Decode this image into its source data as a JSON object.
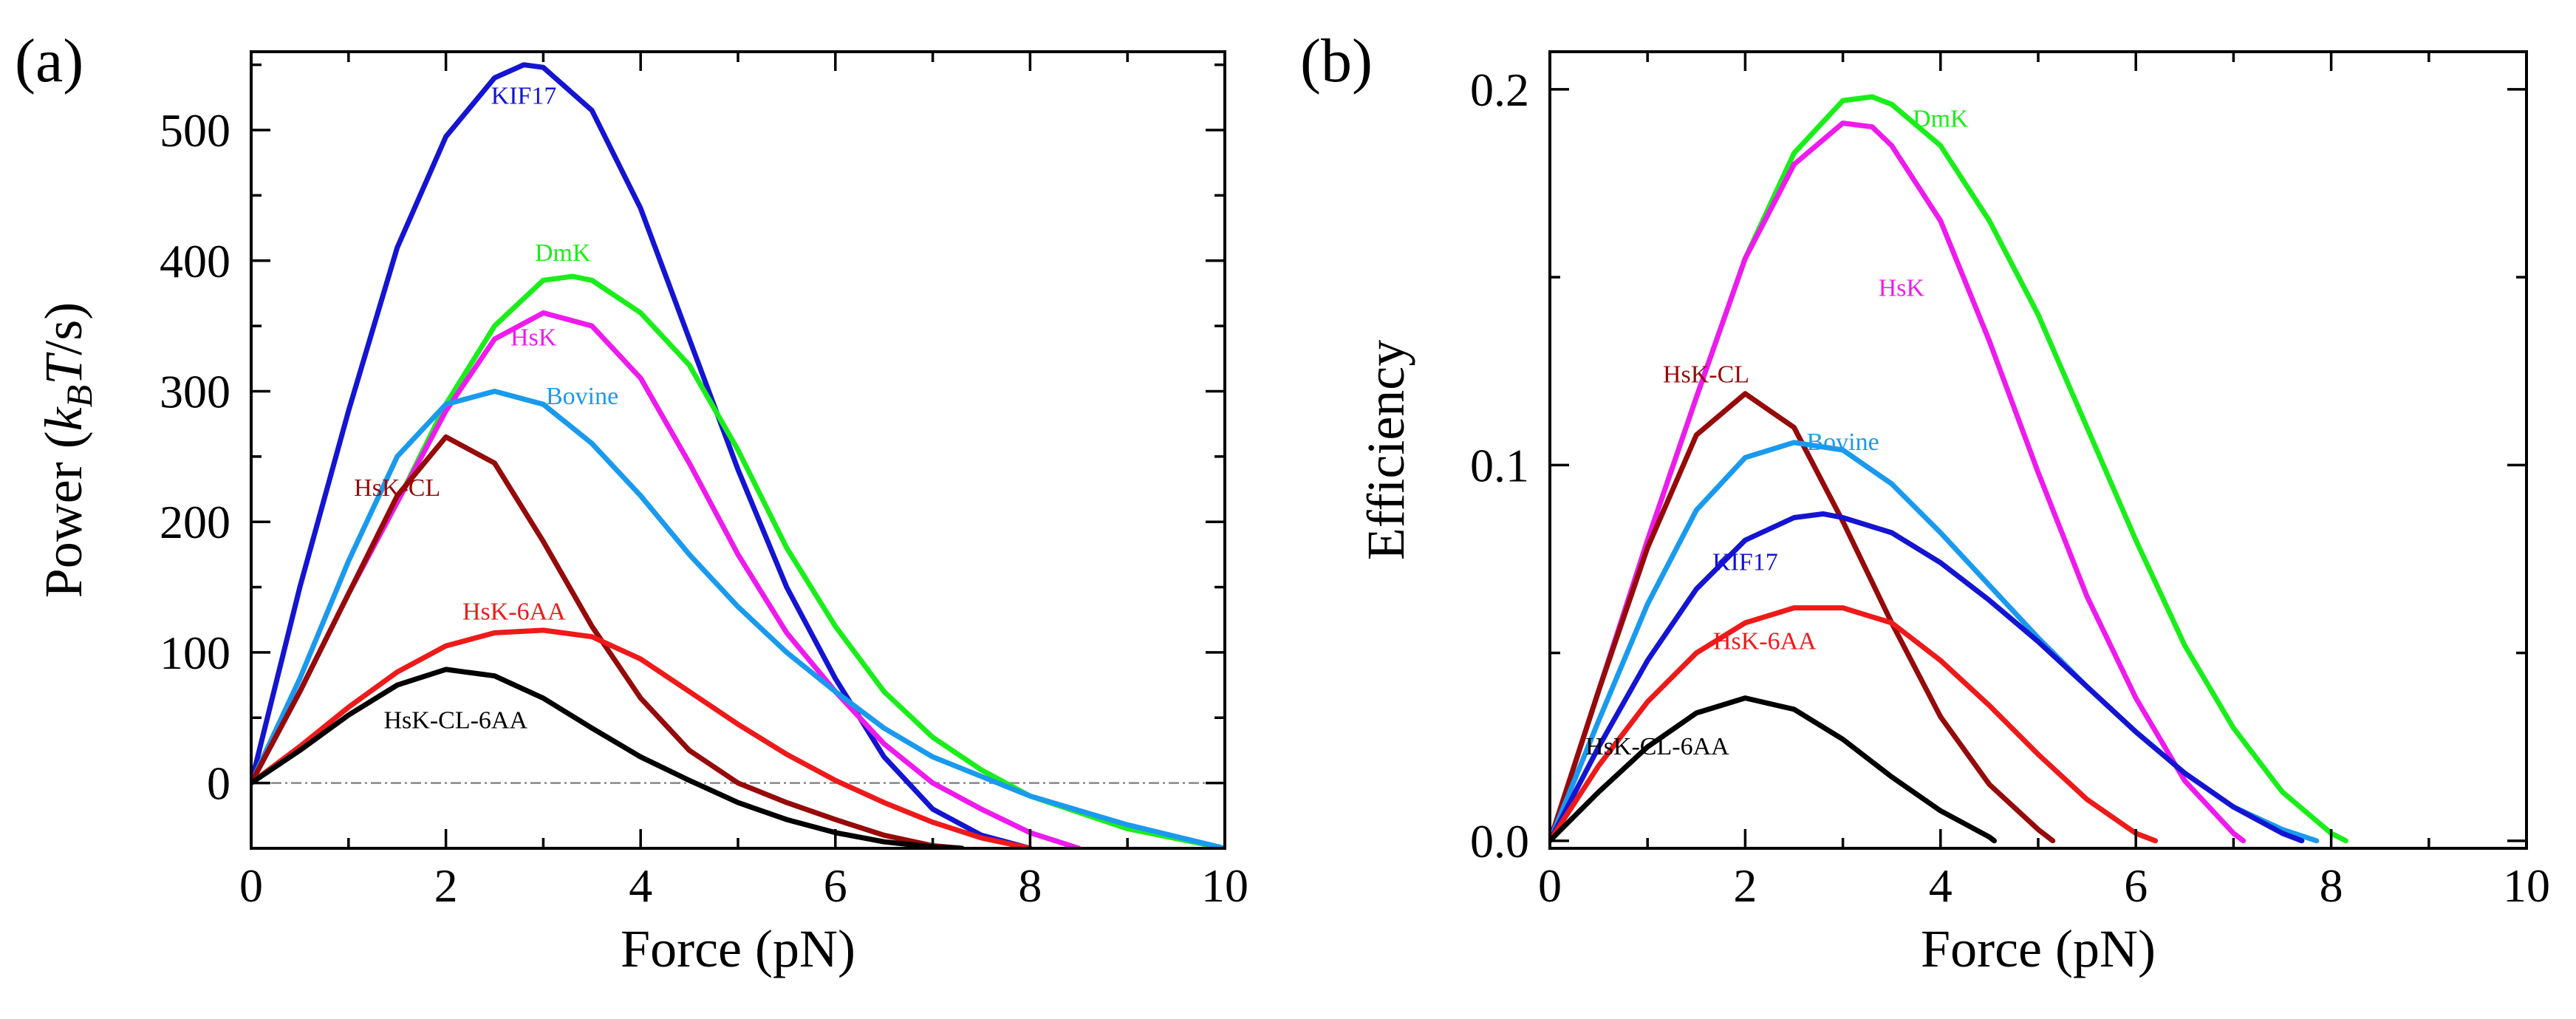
{
  "chart_data": [
    {
      "type": "line",
      "panel_label": "(a)",
      "xlabel": "Force (pN)",
      "ylabel": {
        "prefix": "Power (",
        "k": "k",
        "sub": "B",
        "t": "T",
        "suffix": "/s)"
      },
      "xlim": [
        0,
        10
      ],
      "ylim": [
        -50,
        560
      ],
      "xticks": [
        0,
        2,
        4,
        6,
        8,
        10
      ],
      "yticks": [
        0,
        100,
        200,
        300,
        400,
        500
      ],
      "zero_line": true,
      "series": [
        {
          "name": "KIF17",
          "color": "#1414d2",
          "points": [
            [
              0,
              0
            ],
            [
              0.5,
              150
            ],
            [
              1,
              285
            ],
            [
              1.5,
              410
            ],
            [
              2,
              495
            ],
            [
              2.5,
              540
            ],
            [
              2.8,
              550
            ],
            [
              3,
              548
            ],
            [
              3.5,
              515
            ],
            [
              4,
              440
            ],
            [
              4.5,
              340
            ],
            [
              5,
              240
            ],
            [
              5.5,
              150
            ],
            [
              6,
              80
            ],
            [
              6.5,
              20
            ],
            [
              7,
              -20
            ],
            [
              7.5,
              -40
            ],
            [
              8,
              -50
            ]
          ]
        },
        {
          "name": "DmK",
          "color": "#1aee1a",
          "points": [
            [
              0,
              0
            ],
            [
              0.5,
              70
            ],
            [
              1,
              145
            ],
            [
              1.5,
              215
            ],
            [
              2,
              290
            ],
            [
              2.5,
              350
            ],
            [
              3,
              385
            ],
            [
              3.3,
              388
            ],
            [
              3.5,
              385
            ],
            [
              4,
              360
            ],
            [
              4.5,
              320
            ],
            [
              5,
              255
            ],
            [
              5.5,
              180
            ],
            [
              6,
              120
            ],
            [
              6.5,
              70
            ],
            [
              7,
              35
            ],
            [
              7.5,
              10
            ],
            [
              8,
              -10
            ],
            [
              9,
              -35
            ],
            [
              10,
              -50
            ]
          ]
        },
        {
          "name": "HsK",
          "color": "#ee1aee",
          "points": [
            [
              0,
              0
            ],
            [
              0.5,
              70
            ],
            [
              1,
              145
            ],
            [
              1.5,
              215
            ],
            [
              2,
              285
            ],
            [
              2.5,
              340
            ],
            [
              3,
              360
            ],
            [
              3.5,
              350
            ],
            [
              4,
              310
            ],
            [
              4.5,
              245
            ],
            [
              5,
              175
            ],
            [
              5.5,
              115
            ],
            [
              6,
              70
            ],
            [
              6.5,
              30
            ],
            [
              7,
              0
            ],
            [
              7.5,
              -20
            ],
            [
              8,
              -38
            ],
            [
              8.5,
              -50
            ]
          ]
        },
        {
          "name": "Bovine",
          "color": "#1a9aee",
          "points": [
            [
              0,
              0
            ],
            [
              0.5,
              80
            ],
            [
              1,
              170
            ],
            [
              1.5,
              250
            ],
            [
              2,
              290
            ],
            [
              2.5,
              300
            ],
            [
              3,
              290
            ],
            [
              3.5,
              260
            ],
            [
              4,
              220
            ],
            [
              4.5,
              175
            ],
            [
              5,
              135
            ],
            [
              5.5,
              100
            ],
            [
              6,
              70
            ],
            [
              6.5,
              42
            ],
            [
              7,
              20
            ],
            [
              7.5,
              5
            ],
            [
              8,
              -10
            ],
            [
              9,
              -32
            ],
            [
              10,
              -50
            ]
          ]
        },
        {
          "name": "HsK-CL",
          "color": "#960a0a",
          "points": [
            [
              0,
              0
            ],
            [
              0.5,
              70
            ],
            [
              1,
              145
            ],
            [
              1.5,
              220
            ],
            [
              2,
              265
            ],
            [
              2.5,
              245
            ],
            [
              3,
              185
            ],
            [
              3.5,
              120
            ],
            [
              4,
              65
            ],
            [
              4.5,
              25
            ],
            [
              5,
              0
            ],
            [
              5.5,
              -15
            ],
            [
              6,
              -28
            ],
            [
              6.5,
              -40
            ],
            [
              7,
              -48
            ],
            [
              7.3,
              -50
            ]
          ]
        },
        {
          "name": "HsK-6AA",
          "color": "#ee1a1a",
          "points": [
            [
              0,
              0
            ],
            [
              0.5,
              28
            ],
            [
              1,
              58
            ],
            [
              1.5,
              85
            ],
            [
              2,
              105
            ],
            [
              2.5,
              115
            ],
            [
              3,
              117
            ],
            [
              3.5,
              112
            ],
            [
              4,
              95
            ],
            [
              4.5,
              70
            ],
            [
              5,
              45
            ],
            [
              5.5,
              22
            ],
            [
              6,
              2
            ],
            [
              6.5,
              -15
            ],
            [
              7,
              -30
            ],
            [
              7.5,
              -42
            ],
            [
              8,
              -50
            ]
          ]
        },
        {
          "name": "HsK-CL-6AA",
          "color": "#000000",
          "points": [
            [
              0,
              0
            ],
            [
              0.5,
              25
            ],
            [
              1,
              52
            ],
            [
              1.5,
              75
            ],
            [
              2,
              87
            ],
            [
              2.5,
              82
            ],
            [
              3,
              65
            ],
            [
              3.5,
              42
            ],
            [
              4,
              20
            ],
            [
              4.5,
              2
            ],
            [
              5,
              -15
            ],
            [
              5.5,
              -28
            ],
            [
              6,
              -38
            ],
            [
              6.5,
              -45
            ],
            [
              7,
              -49
            ],
            [
              7.3,
              -50
            ]
          ]
        }
      ],
      "annotations": [
        {
          "text": "KIF17",
          "series": "KIF17",
          "x": 2.8,
          "y": 520
        },
        {
          "text": "DmK",
          "series": "DmK",
          "x": 3.2,
          "y": 400
        },
        {
          "text": "HsK",
          "series": "HsK",
          "x": 2.9,
          "y": 335
        },
        {
          "text": "Bovine",
          "series": "Bovine",
          "x": 3.4,
          "y": 290
        },
        {
          "text": "HsK-CL",
          "series": "HsK-CL",
          "x": 1.5,
          "y": 220
        },
        {
          "text": "HsK-6AA",
          "series": "HsK-6AA",
          "x": 2.7,
          "y": 125
        },
        {
          "text": "HsK-CL-6AA",
          "series": "HsK-CL-6AA",
          "x": 2.1,
          "y": 42
        }
      ]
    },
    {
      "type": "line",
      "panel_label": "(b)",
      "xlabel": "Force (pN)",
      "ylabel": "Efficiency",
      "xlim": [
        0,
        10
      ],
      "ylim": [
        -0.002,
        0.21
      ],
      "xticks": [
        0,
        2,
        4,
        6,
        8,
        10
      ],
      "yticks": [
        0.0,
        0.1,
        0.2
      ],
      "ytick_labels": [
        "0.0",
        "0.1",
        "0.2"
      ],
      "zero_line": false,
      "series": [
        {
          "name": "DmK",
          "color": "#1aee1a",
          "points": [
            [
              0,
              0
            ],
            [
              0.5,
              0.04
            ],
            [
              1,
              0.08
            ],
            [
              1.5,
              0.118
            ],
            [
              2,
              0.155
            ],
            [
              2.5,
              0.183
            ],
            [
              3,
              0.197
            ],
            [
              3.3,
              0.198
            ],
            [
              3.5,
              0.196
            ],
            [
              4,
              0.185
            ],
            [
              4.5,
              0.165
            ],
            [
              5,
              0.14
            ],
            [
              5.5,
              0.11
            ],
            [
              6,
              0.08
            ],
            [
              6.5,
              0.052
            ],
            [
              7,
              0.03
            ],
            [
              7.5,
              0.013
            ],
            [
              8,
              0.002
            ],
            [
              8.15,
              0
            ]
          ]
        },
        {
          "name": "HsK",
          "color": "#ee1aee",
          "points": [
            [
              0,
              0
            ],
            [
              0.5,
              0.04
            ],
            [
              1,
              0.08
            ],
            [
              1.5,
              0.118
            ],
            [
              2,
              0.155
            ],
            [
              2.5,
              0.18
            ],
            [
              3,
              0.191
            ],
            [
              3.3,
              0.19
            ],
            [
              3.5,
              0.185
            ],
            [
              4,
              0.165
            ],
            [
              4.5,
              0.133
            ],
            [
              5,
              0.098
            ],
            [
              5.5,
              0.065
            ],
            [
              6,
              0.038
            ],
            [
              6.5,
              0.016
            ],
            [
              7,
              0.002
            ],
            [
              7.1,
              0
            ]
          ]
        },
        {
          "name": "HsK-CL",
          "color": "#960a0a",
          "points": [
            [
              0,
              0
            ],
            [
              0.5,
              0.04
            ],
            [
              1,
              0.078
            ],
            [
              1.5,
              0.108
            ],
            [
              2,
              0.119
            ],
            [
              2.5,
              0.11
            ],
            [
              3,
              0.085
            ],
            [
              3.5,
              0.058
            ],
            [
              4,
              0.033
            ],
            [
              4.5,
              0.015
            ],
            [
              5,
              0.003
            ],
            [
              5.15,
              0
            ]
          ]
        },
        {
          "name": "Bovine",
          "color": "#1a9aee",
          "points": [
            [
              0,
              0
            ],
            [
              0.5,
              0.032
            ],
            [
              1,
              0.063
            ],
            [
              1.5,
              0.088
            ],
            [
              2,
              0.102
            ],
            [
              2.5,
              0.106
            ],
            [
              3,
              0.104
            ],
            [
              3.5,
              0.095
            ],
            [
              4,
              0.082
            ],
            [
              4.5,
              0.068
            ],
            [
              5,
              0.054
            ],
            [
              5.5,
              0.041
            ],
            [
              6,
              0.029
            ],
            [
              6.5,
              0.018
            ],
            [
              7,
              0.009
            ],
            [
              7.5,
              0.003
            ],
            [
              7.85,
              0
            ]
          ]
        },
        {
          "name": "KIF17",
          "color": "#1414d2",
          "points": [
            [
              0,
              0
            ],
            [
              0.5,
              0.025
            ],
            [
              1,
              0.048
            ],
            [
              1.5,
              0.067
            ],
            [
              2,
              0.08
            ],
            [
              2.5,
              0.086
            ],
            [
              2.8,
              0.087
            ],
            [
              3,
              0.086
            ],
            [
              3.5,
              0.082
            ],
            [
              4,
              0.074
            ],
            [
              4.5,
              0.064
            ],
            [
              5,
              0.053
            ],
            [
              5.5,
              0.041
            ],
            [
              6,
              0.029
            ],
            [
              6.5,
              0.018
            ],
            [
              7,
              0.009
            ],
            [
              7.5,
              0.002
            ],
            [
              7.7,
              0
            ]
          ]
        },
        {
          "name": "HsK-6AA",
          "color": "#ee1a1a",
          "points": [
            [
              0,
              0
            ],
            [
              0.5,
              0.02
            ],
            [
              1,
              0.037
            ],
            [
              1.5,
              0.05
            ],
            [
              2,
              0.058
            ],
            [
              2.5,
              0.062
            ],
            [
              3,
              0.062
            ],
            [
              3.5,
              0.058
            ],
            [
              4,
              0.048
            ],
            [
              4.5,
              0.036
            ],
            [
              5,
              0.023
            ],
            [
              5.5,
              0.011
            ],
            [
              6,
              0.002
            ],
            [
              6.2,
              0
            ]
          ]
        },
        {
          "name": "HsK-CL-6AA",
          "color": "#000000",
          "points": [
            [
              0,
              0
            ],
            [
              0.5,
              0.013
            ],
            [
              1,
              0.025
            ],
            [
              1.5,
              0.034
            ],
            [
              2,
              0.038
            ],
            [
              2.5,
              0.035
            ],
            [
              3,
              0.027
            ],
            [
              3.5,
              0.017
            ],
            [
              4,
              0.008
            ],
            [
              4.5,
              0.001
            ],
            [
              4.55,
              0
            ]
          ]
        }
      ],
      "annotations": [
        {
          "text": "DmK",
          "series": "DmK",
          "x": 4.0,
          "y": 0.19
        },
        {
          "text": "HsK",
          "series": "HsK",
          "x": 3.6,
          "y": 0.145
        },
        {
          "text": "HsK-CL",
          "series": "HsK-CL",
          "x": 1.6,
          "y": 0.122
        },
        {
          "text": "Bovine",
          "series": "Bovine",
          "x": 3.0,
          "y": 0.104
        },
        {
          "text": "KIF17",
          "series": "KIF17",
          "x": 2.0,
          "y": 0.072
        },
        {
          "text": "HsK-6AA",
          "series": "HsK-6AA",
          "x": 2.2,
          "y": 0.051
        },
        {
          "text": "HsK-CL-6AA",
          "series": "HsK-CL-6AA",
          "x": 1.1,
          "y": 0.023
        }
      ]
    }
  ]
}
